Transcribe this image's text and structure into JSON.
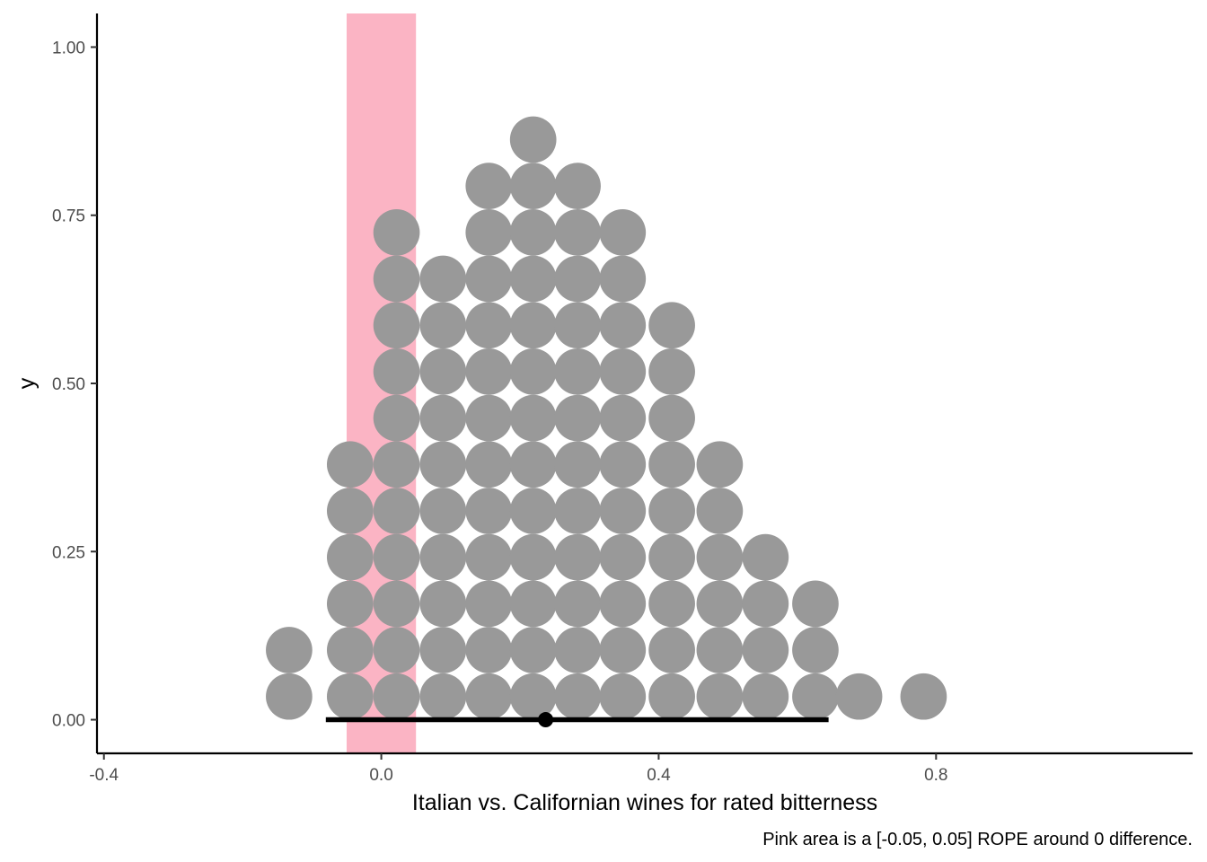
{
  "chart_data": {
    "type": "dotplot",
    "xlabel": "Italian vs. Californian wines for rated bitterness",
    "ylabel": "y",
    "caption": "Pink area is a [-0.05, 0.05] ROPE around 0 difference.",
    "xlim": [
      -0.41,
      1.17
    ],
    "ylim": [
      -0.05,
      1.05
    ],
    "x_ticks": [
      -0.4,
      0.0,
      0.4,
      0.8
    ],
    "x_tick_labels": [
      "-0.4",
      "0.0",
      "0.4",
      "0.8"
    ],
    "y_ticks": [
      0.0,
      0.25,
      0.5,
      0.75,
      1.0
    ],
    "y_tick_labels": [
      "0.00",
      "0.25",
      "0.50",
      "0.75",
      "1.00"
    ],
    "rope": {
      "xmin": -0.05,
      "xmax": 0.05,
      "color": "#fbb4c4"
    },
    "dot_color": "#999999",
    "dot_radius_y": 0.0345,
    "dot_row_step": 0.069,
    "dot_first_row_y": 0.0345,
    "stacks": [
      {
        "x": -0.133,
        "count": 2
      },
      {
        "x": -0.045,
        "count": 6
      },
      {
        "x": 0.022,
        "count": 11
      },
      {
        "x": 0.089,
        "count": 10
      },
      {
        "x": 0.155,
        "count": 12
      },
      {
        "x": 0.219,
        "count": 13
      },
      {
        "x": 0.283,
        "count": 12
      },
      {
        "x": 0.348,
        "count": 11
      },
      {
        "x": 0.419,
        "count": 9
      },
      {
        "x": 0.488,
        "count": 6
      },
      {
        "x": 0.554,
        "count": 4
      },
      {
        "x": 0.626,
        "count": 3
      },
      {
        "x": 0.689,
        "count": 1
      },
      {
        "x": 0.782,
        "count": 1
      }
    ],
    "interval": {
      "xmin": -0.08,
      "xmax": 0.645,
      "y": 0.0,
      "color": "#000000"
    },
    "point_estimate": {
      "x": 0.237,
      "y": 0.0,
      "color": "#000000"
    }
  }
}
